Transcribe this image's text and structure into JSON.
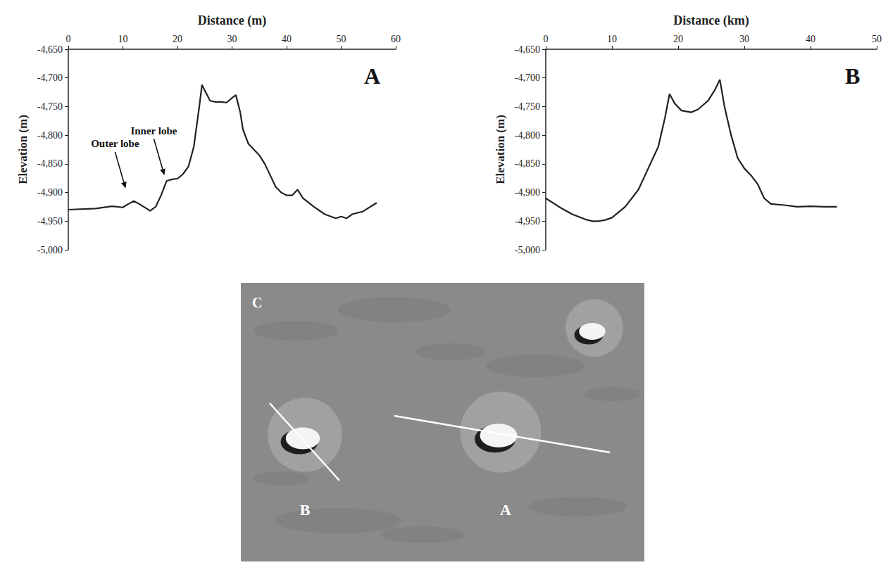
{
  "chart_data": [
    {
      "type": "line",
      "panel_label": "A",
      "x_label": "Distance (m)",
      "y_label": "Elevation (m)",
      "x": [
        0,
        5,
        8,
        10,
        11,
        12,
        13,
        15,
        16,
        17,
        18,
        19,
        20,
        21,
        22,
        23,
        24,
        24.5,
        25,
        26,
        27,
        28,
        29,
        30,
        30.7,
        31.5,
        32,
        33,
        35,
        36,
        37,
        38,
        39,
        40,
        41,
        42,
        43,
        45,
        47,
        49,
        50,
        51,
        52,
        54,
        56.5
      ],
      "values": [
        -4930,
        -4928,
        -4924,
        -4926,
        -4920,
        -4915,
        -4920,
        -4932,
        -4925,
        -4905,
        -4880,
        -4877,
        -4876,
        -4868,
        -4855,
        -4820,
        -4750,
        -4712,
        -4722,
        -4740,
        -4742,
        -4742,
        -4743,
        -4735,
        -4730,
        -4760,
        -4790,
        -4815,
        -4835,
        -4850,
        -4870,
        -4890,
        -4900,
        -4905,
        -4905,
        -4895,
        -4910,
        -4925,
        -4938,
        -4945,
        -4942,
        -4945,
        -4938,
        -4933,
        -4918
      ],
      "color": "#222222",
      "xlim": [
        0,
        60
      ],
      "xticks": [
        0,
        10,
        20,
        30,
        40,
        50,
        60
      ],
      "ylim": [
        -5000,
        -4650
      ],
      "yticks": [
        -5000,
        -4950,
        -4900,
        -4850,
        -4800,
        -4750,
        -4700,
        -4650
      ],
      "grid": false,
      "annotations": [
        {
          "text": "Outer lobe",
          "x": 10.5,
          "y": -4893
        },
        {
          "text": "Inner lobe",
          "x": 17.6,
          "y": -4870
        }
      ]
    },
    {
      "type": "line",
      "panel_label": "B",
      "x_label": "Distance (km)",
      "y_label": "Elevation (m)",
      "x": [
        0,
        2,
        4,
        6,
        7,
        8,
        9,
        10,
        12,
        14,
        15,
        16,
        17,
        18,
        18.7,
        19.5,
        20.5,
        22,
        23,
        24.5,
        25.5,
        26.3,
        27,
        28,
        29,
        30,
        31,
        32,
        33,
        34,
        36,
        38,
        40,
        42,
        44
      ],
      "values": [
        -4910,
        -4925,
        -4938,
        -4947,
        -4950,
        -4950,
        -4948,
        -4944,
        -4925,
        -4895,
        -4870,
        -4845,
        -4820,
        -4770,
        -4728,
        -4745,
        -4757,
        -4760,
        -4755,
        -4740,
        -4722,
        -4703,
        -4750,
        -4800,
        -4840,
        -4858,
        -4870,
        -4885,
        -4910,
        -4920,
        -4922,
        -4925,
        -4924,
        -4925,
        -4925
      ],
      "color": "#222222",
      "xlim": [
        0,
        50
      ],
      "xticks": [
        0,
        10,
        20,
        30,
        40,
        50
      ],
      "ylim": [
        -5000,
        -4650
      ],
      "yticks": [
        -5000,
        -4950,
        -4900,
        -4850,
        -4800,
        -4750,
        -4700,
        -4650
      ],
      "grid": false
    }
  ],
  "image": {
    "label": "C",
    "profile_labels": [
      "B",
      "A"
    ]
  }
}
